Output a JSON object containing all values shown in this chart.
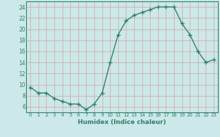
{
  "x": [
    0,
    1,
    2,
    3,
    4,
    5,
    6,
    7,
    8,
    9,
    10,
    11,
    12,
    13,
    14,
    15,
    16,
    17,
    18,
    19,
    20,
    21,
    22,
    23
  ],
  "y": [
    9.5,
    8.5,
    8.5,
    7.5,
    7.0,
    6.5,
    6.5,
    5.5,
    6.5,
    8.5,
    14.0,
    19.0,
    21.5,
    22.5,
    23.0,
    23.5,
    24.0,
    24.0,
    24.0,
    21.0,
    19.0,
    16.0,
    14.0,
    14.5
  ],
  "xlabel": "Humidex (Indice chaleur)",
  "xlim": [
    -0.5,
    23.5
  ],
  "ylim": [
    5.0,
    25.0
  ],
  "yticks": [
    6,
    8,
    10,
    12,
    14,
    16,
    18,
    20,
    22,
    24
  ],
  "xticks": [
    0,
    1,
    2,
    3,
    4,
    5,
    6,
    7,
    8,
    9,
    10,
    11,
    12,
    13,
    14,
    15,
    16,
    17,
    18,
    19,
    20,
    21,
    22,
    23
  ],
  "line_color": "#2e7d6b",
  "bg_color": "#cce8e8",
  "grid_color": "#c0d8d8",
  "text_color": "#2e7d6b"
}
